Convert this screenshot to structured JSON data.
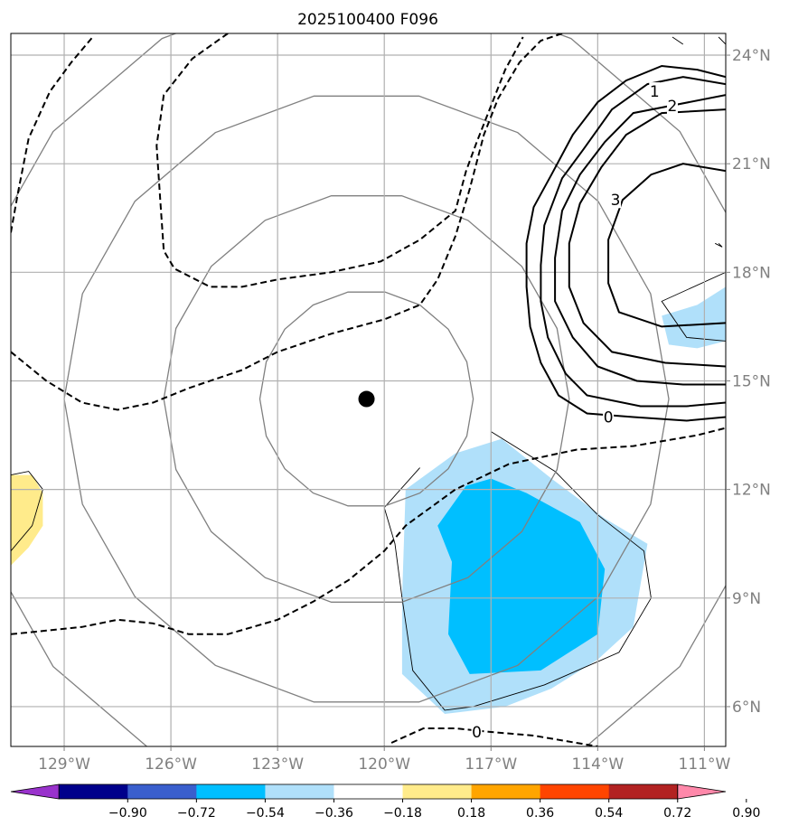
{
  "chart_data": {
    "type": "heatmap",
    "title": "2025100400 F096",
    "projection": "geographic map",
    "grid": true,
    "extent": {
      "lon": [
        -130.5,
        -110.4
      ],
      "lat": [
        4.9,
        24.6
      ]
    },
    "longitude_ticks": [
      {
        "value": -129,
        "label": "129°W"
      },
      {
        "value": -126,
        "label": "126°W"
      },
      {
        "value": -123,
        "label": "123°W"
      },
      {
        "value": -120,
        "label": "120°W"
      },
      {
        "value": -117,
        "label": "117°W"
      },
      {
        "value": -114,
        "label": "114°W"
      },
      {
        "value": -111,
        "label": "111°W"
      }
    ],
    "latitude_ticks": [
      {
        "value": 24,
        "label": "24°N"
      },
      {
        "value": 21,
        "label": "21°N"
      },
      {
        "value": 18,
        "label": "18°N"
      },
      {
        "value": 15,
        "label": "15°N"
      },
      {
        "value": 12,
        "label": "12°N"
      },
      {
        "value": 9,
        "label": "9°N"
      },
      {
        "value": 6,
        "label": "6°N"
      }
    ],
    "storm_center": {
      "lon": -120.5,
      "lat": 14.5
    },
    "range_rings": [
      {
        "center": [
          -120.5,
          14.5
        ],
        "radius_deg": 3.0
      },
      {
        "center": [
          -120.5,
          14.5
        ],
        "radius_deg": 5.7
      },
      {
        "center": [
          -120.5,
          14.5
        ],
        "radius_deg": 8.5
      },
      {
        "center": [
          -120.5,
          14.5
        ],
        "radius_deg": 11.5
      }
    ],
    "filled_regions": [
      {
        "level": "-0.36 to -0.18",
        "color": "#b0e0fa",
        "points": [
          [
            -115.3,
            6.5
          ],
          [
            -114.0,
            7.3
          ],
          [
            -113.0,
            8.2
          ],
          [
            -112.6,
            10.5
          ],
          [
            -113.8,
            11.2
          ],
          [
            -115.3,
            12.3
          ],
          [
            -116.7,
            13.4
          ],
          [
            -118.0,
            13.0
          ],
          [
            -119.4,
            12.0
          ],
          [
            -119.5,
            9.0
          ],
          [
            -119.5,
            6.9
          ],
          [
            -118.3,
            5.8
          ],
          [
            -116.6,
            6.0
          ]
        ]
      },
      {
        "level": "-0.54 to -0.36",
        "color": "#00bfff",
        "points": [
          [
            -117.6,
            6.9
          ],
          [
            -115.6,
            7.0
          ],
          [
            -114.0,
            8.0
          ],
          [
            -113.8,
            9.8
          ],
          [
            -114.5,
            11.1
          ],
          [
            -116.0,
            11.9
          ],
          [
            -117.0,
            12.3
          ],
          [
            -117.7,
            12.1
          ],
          [
            -118.5,
            11.0
          ],
          [
            -118.1,
            10.0
          ],
          [
            -118.2,
            8.0
          ]
        ]
      },
      {
        "level": "-0.36 to -0.18",
        "color": "#b0e0fa",
        "points": [
          [
            -110.4,
            17.6
          ],
          [
            -111.2,
            17.1
          ],
          [
            -112.2,
            16.8
          ],
          [
            -112.0,
            16.0
          ],
          [
            -111.2,
            15.9
          ],
          [
            -110.4,
            16.1
          ]
        ]
      },
      {
        "level": "0.18 to 0.36",
        "color": "#ffeb8b",
        "points": [
          [
            -130.5,
            12.4
          ],
          [
            -129.9,
            12.4
          ],
          [
            -129.6,
            11.9
          ],
          [
            -129.6,
            11.0
          ],
          [
            -130.0,
            10.4
          ],
          [
            -130.5,
            9.9
          ]
        ]
      }
    ],
    "thin_outlines": [
      [
        [
          -117.0,
          13.6
        ],
        [
          -115.2,
          12.5
        ],
        [
          -114.0,
          11.3
        ],
        [
          -112.7,
          10.3
        ],
        [
          -112.5,
          9.0
        ],
        [
          -113.4,
          7.5
        ],
        [
          -115.5,
          6.6
        ],
        [
          -117.5,
          6.0
        ],
        [
          -118.3,
          5.9
        ],
        [
          -119.2,
          7.0
        ],
        [
          -119.5,
          9.0
        ],
        [
          -119.7,
          10.5
        ],
        [
          -120.0,
          11.5
        ],
        [
          -119.0,
          12.6
        ]
      ],
      [
        [
          -130.5,
          12.4
        ],
        [
          -130.0,
          12.5
        ],
        [
          -129.6,
          12.0
        ],
        [
          -129.9,
          11.0
        ],
        [
          -130.5,
          10.3
        ]
      ],
      [
        [
          -110.4,
          18.0
        ],
        [
          -112.2,
          17.2
        ],
        [
          -111.5,
          16.2
        ],
        [
          -110.4,
          16.1
        ]
      ],
      [
        [
          -111.9,
          24.5
        ],
        [
          -111.6,
          24.3
        ]
      ],
      [
        [
          -110.4,
          24.3
        ],
        [
          -110.6,
          24.5
        ]
      ],
      [
        [
          -110.7,
          18.8
        ],
        [
          -110.5,
          18.7
        ],
        [
          -110.6,
          18.8
        ]
      ]
    ],
    "solid_contours": [
      {
        "value": 0,
        "label": "0",
        "label_at": [
          -113.7,
          14.0
        ],
        "points": [
          [
            -110.4,
            14.0
          ],
          [
            -111.5,
            13.9
          ],
          [
            -113.0,
            14.0
          ],
          [
            -114.3,
            14.1
          ],
          [
            -115.1,
            14.6
          ],
          [
            -115.6,
            15.5
          ],
          [
            -115.9,
            16.5
          ],
          [
            -116.0,
            17.6
          ],
          [
            -116.0,
            18.8
          ],
          [
            -115.8,
            19.8
          ],
          [
            -115.3,
            20.7
          ],
          [
            -114.7,
            21.8
          ],
          [
            -114.0,
            22.7
          ],
          [
            -113.2,
            23.3
          ],
          [
            -112.2,
            23.7
          ],
          [
            -111.2,
            23.6
          ],
          [
            -110.4,
            23.4
          ]
        ]
      },
      {
        "value": 0.5,
        "label": "",
        "points": [
          [
            -110.4,
            14.4
          ],
          [
            -111.5,
            14.3
          ],
          [
            -112.8,
            14.3
          ],
          [
            -114.3,
            14.6
          ],
          [
            -114.9,
            15.2
          ],
          [
            -115.4,
            16.2
          ],
          [
            -115.6,
            17.2
          ],
          [
            -115.6,
            18.2
          ],
          [
            -115.5,
            19.3
          ],
          [
            -115.0,
            20.6
          ],
          [
            -114.4,
            21.4
          ],
          [
            -113.6,
            22.5
          ],
          [
            -112.6,
            23.2
          ],
          [
            -111.6,
            23.4
          ],
          [
            -110.4,
            23.2
          ]
        ]
      },
      {
        "value": 1,
        "label": "1",
        "label_at": [
          -112.4,
          23.0
        ],
        "points": [
          [
            -110.4,
            14.9
          ],
          [
            -111.6,
            14.9
          ],
          [
            -112.9,
            15.0
          ],
          [
            -114.0,
            15.4
          ],
          [
            -114.7,
            16.2
          ],
          [
            -115.2,
            17.2
          ],
          [
            -115.2,
            18.4
          ],
          [
            -115.0,
            19.7
          ],
          [
            -114.5,
            20.7
          ],
          [
            -113.8,
            21.6
          ],
          [
            -113.0,
            22.4
          ],
          [
            -110.4,
            22.9
          ]
        ]
      },
      {
        "value": 2,
        "label": "2",
        "label_at": [
          -111.9,
          22.6
        ],
        "points": [
          [
            -110.4,
            15.4
          ],
          [
            -112.1,
            15.5
          ],
          [
            -113.6,
            15.8
          ],
          [
            -114.4,
            16.6
          ],
          [
            -114.8,
            17.6
          ],
          [
            -114.8,
            18.8
          ],
          [
            -114.5,
            19.9
          ],
          [
            -113.9,
            20.9
          ],
          [
            -113.2,
            21.8
          ],
          [
            -112.2,
            22.4
          ],
          [
            -110.4,
            22.5
          ]
        ]
      },
      {
        "value": 3,
        "label": "3",
        "label_at": [
          -113.5,
          20.0
        ],
        "points": [
          [
            -110.4,
            16.6
          ],
          [
            -112.2,
            16.5
          ],
          [
            -113.4,
            16.9
          ],
          [
            -113.7,
            17.7
          ],
          [
            -113.7,
            18.9
          ],
          [
            -113.3,
            20.0
          ],
          [
            -112.5,
            20.7
          ],
          [
            -111.6,
            21.0
          ],
          [
            -110.4,
            20.8
          ]
        ]
      }
    ],
    "dashed_contours": [
      {
        "value": 0,
        "label": "0",
        "label_at": [
          -117.4,
          5.3
        ],
        "points": [
          [
            -119.8,
            5.0
          ],
          [
            -118.9,
            5.4
          ],
          [
            -118.0,
            5.4
          ],
          [
            -117.0,
            5.3
          ],
          [
            -115.8,
            5.2
          ],
          [
            -114.0,
            4.9
          ]
        ]
      },
      {
        "value": null,
        "label": "",
        "points": [
          [
            -130.5,
            8.0
          ],
          [
            -129.5,
            8.1
          ],
          [
            -128.5,
            8.2
          ],
          [
            -127.5,
            8.4
          ],
          [
            -126.5,
            8.3
          ],
          [
            -125.5,
            8.0
          ],
          [
            -124.4,
            8.0
          ],
          [
            -123.0,
            8.4
          ],
          [
            -122.0,
            8.9
          ],
          [
            -121.0,
            9.5
          ],
          [
            -120.0,
            10.3
          ],
          [
            -119.4,
            11.0
          ],
          [
            -118.0,
            12.0
          ],
          [
            -116.5,
            12.7
          ],
          [
            -114.6,
            13.1
          ],
          [
            -113.0,
            13.2
          ],
          [
            -111.2,
            13.5
          ],
          [
            -110.4,
            13.7
          ]
        ]
      },
      {
        "value": null,
        "label": "",
        "points": [
          [
            -130.5,
            15.8
          ],
          [
            -129.5,
            15.0
          ],
          [
            -128.5,
            14.4
          ],
          [
            -127.5,
            14.2
          ],
          [
            -126.5,
            14.4
          ],
          [
            -125.5,
            14.8
          ],
          [
            -124.0,
            15.3
          ],
          [
            -123.0,
            15.8
          ],
          [
            -121.5,
            16.3
          ],
          [
            -120.0,
            16.7
          ],
          [
            -119.0,
            17.1
          ],
          [
            -118.5,
            17.8
          ],
          [
            -118.0,
            19.0
          ],
          [
            -117.6,
            20.3
          ],
          [
            -117.2,
            21.8
          ],
          [
            -116.8,
            22.8
          ],
          [
            -116.2,
            23.8
          ],
          [
            -115.6,
            24.4
          ],
          [
            -115.0,
            24.6
          ]
        ]
      },
      {
        "value": null,
        "label": "",
        "points": [
          [
            -130.5,
            19.1
          ],
          [
            -130.3,
            20.2
          ],
          [
            -130.0,
            21.7
          ],
          [
            -129.4,
            23.0
          ],
          [
            -128.8,
            23.8
          ],
          [
            -128.2,
            24.5
          ]
        ]
      },
      {
        "value": null,
        "label": "",
        "points": [
          [
            -124.4,
            24.6
          ],
          [
            -125.4,
            23.9
          ],
          [
            -126.2,
            22.9
          ],
          [
            -126.4,
            21.5
          ],
          [
            -126.3,
            20.0
          ],
          [
            -126.2,
            18.6
          ],
          [
            -125.9,
            18.1
          ],
          [
            -124.9,
            17.6
          ],
          [
            -124.0,
            17.6
          ],
          [
            -123.0,
            17.8
          ],
          [
            -121.5,
            18.0
          ],
          [
            -120.1,
            18.3
          ],
          [
            -119.0,
            18.9
          ],
          [
            -118.0,
            19.7
          ],
          [
            -117.7,
            20.8
          ],
          [
            -117.4,
            21.6
          ],
          [
            -117.0,
            22.6
          ],
          [
            -116.6,
            23.6
          ],
          [
            -116.1,
            24.5
          ]
        ]
      }
    ],
    "colorbar": {
      "ticks": [
        "−0.90",
        "−0.72",
        "−0.54",
        "−0.36",
        "−0.18",
        "0.18",
        "0.36",
        "0.54",
        "0.72",
        "0.90"
      ],
      "colors": [
        "#9932cc",
        "#00008b",
        "#3a5fcd",
        "#00bfff",
        "#b0e0fa",
        "#ffffff",
        "#ffeb8b",
        "#ffa500",
        "#ff4500",
        "#b22222",
        "#ff88aa"
      ],
      "extend": "both"
    }
  }
}
